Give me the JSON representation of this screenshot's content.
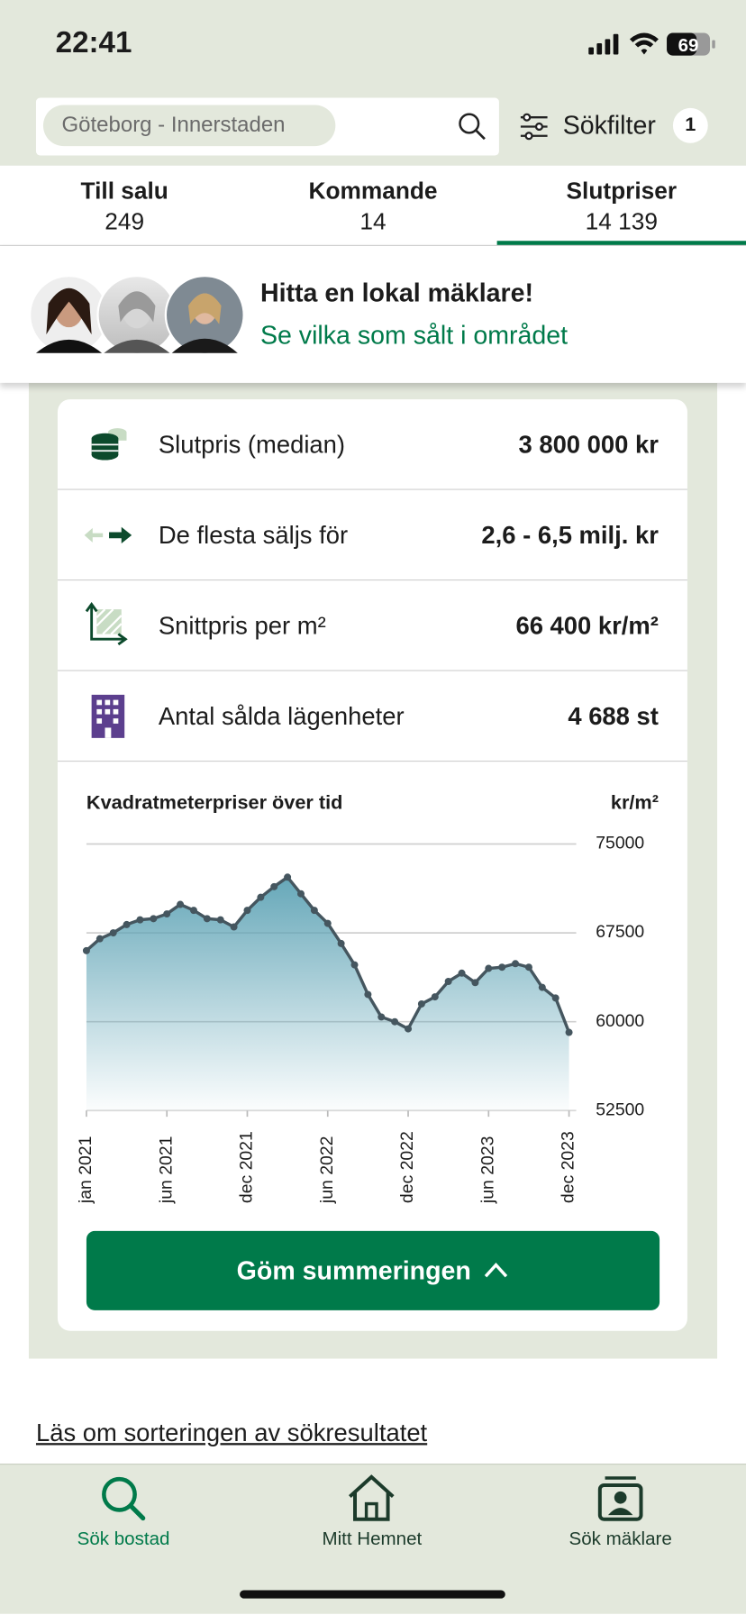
{
  "status_bar": {
    "time": "22:41",
    "battery": "69"
  },
  "search": {
    "placeholder": "Göteborg - Innerstaden",
    "filter_label": "Sökfilter",
    "filter_count": "1"
  },
  "tabs": [
    {
      "label": "Till salu",
      "count": "249"
    },
    {
      "label": "Kommande",
      "count": "14"
    },
    {
      "label": "Slutpriser",
      "count": "14 139"
    }
  ],
  "banner": {
    "title": "Hitta en lokal mäklare!",
    "link": "Se vilka som sålt i området"
  },
  "stats": [
    {
      "label": "Slutpris (median)",
      "value": "3 800 000 kr"
    },
    {
      "label": "De flesta säljs för",
      "value": "2,6 - 6,5 milj. kr"
    },
    {
      "label": "Snittpris per m²",
      "value": "66 400 kr/m²"
    },
    {
      "label": "Antal sålda lägenheter",
      "value": "4 688 st"
    }
  ],
  "chart_data": {
    "type": "area",
    "title": "Kvadratmeterpriser över tid",
    "y_label": "kr/m²",
    "categories": [
      "jan 2021",
      null,
      null,
      null,
      null,
      null,
      "jun 2021",
      null,
      null,
      null,
      null,
      null,
      "dec 2021",
      null,
      null,
      null,
      null,
      null,
      "jun 2022",
      null,
      null,
      null,
      null,
      null,
      "dec 2022",
      null,
      null,
      null,
      null,
      null,
      "jun 2023",
      null,
      null,
      null,
      null,
      null,
      "dec 2023"
    ],
    "values": [
      66000,
      67000,
      67500,
      68200,
      68600,
      68700,
      69100,
      69900,
      69400,
      68700,
      68600,
      68000,
      69400,
      70500,
      71400,
      72200,
      70800,
      69400,
      68300,
      66600,
      64800,
      62300,
      60400,
      60000,
      59400,
      61500,
      62100,
      63400,
      64100,
      63300,
      64500,
      64600,
      64900,
      64600,
      62900,
      62000,
      59100
    ],
    "color": "#45565f",
    "fill_color": "#5ea3b5",
    "ylim": [
      52500,
      75000
    ],
    "yticks": [
      52500,
      60000,
      67500,
      75000
    ],
    "grid": true
  },
  "button": "Göm summeringen",
  "link": "Läs om sorteringen av sökresultatet",
  "nav": [
    {
      "label": "Sök bostad"
    },
    {
      "label": "Mitt Hemnet"
    },
    {
      "label": "Sök mäklare"
    }
  ]
}
